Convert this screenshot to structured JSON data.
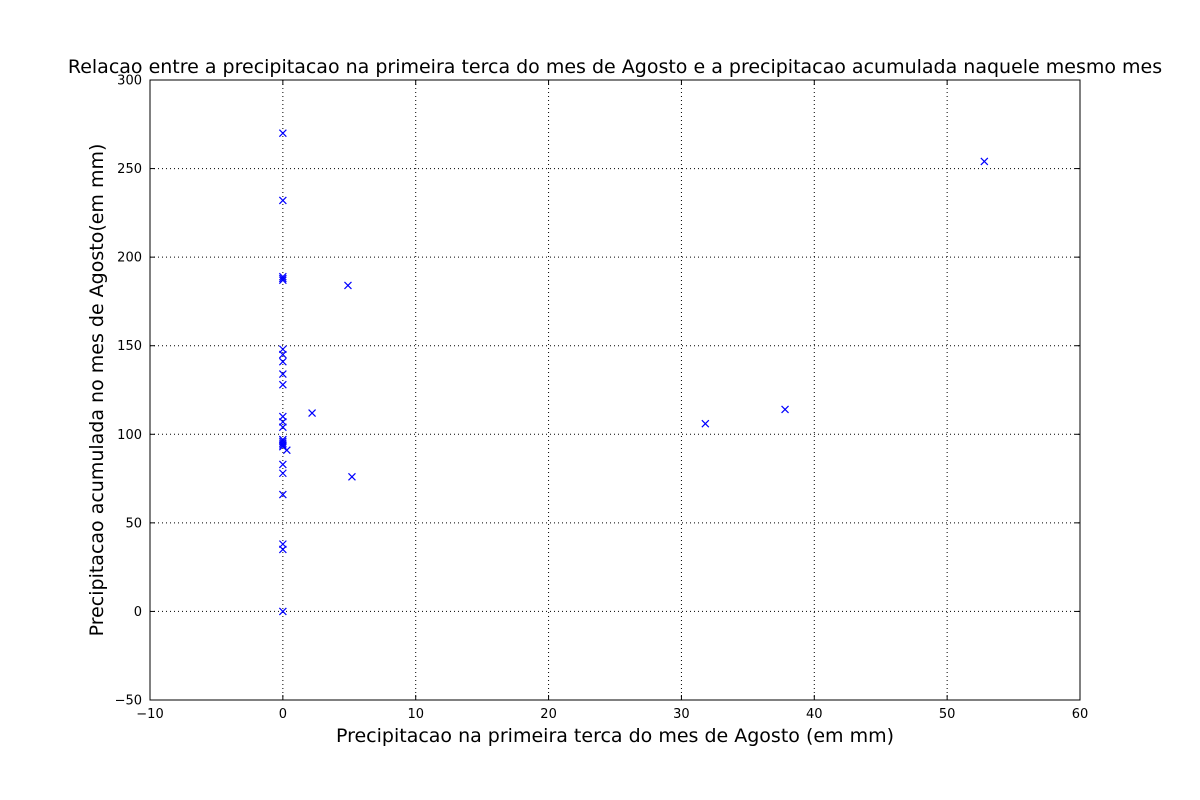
{
  "chart_data": {
    "type": "scatter",
    "title": "Relacao entre a precipitacao na primeira terca do mes de Agosto e a precipitacao acumulada naquele mesmo mes",
    "xlabel": "Precipitacao na primeira terca do mes de Agosto (em mm)",
    "ylabel": "Precipitacao acumulada no mes de Agosto(em mm)",
    "xlim": [
      -10,
      60
    ],
    "ylim": [
      -50,
      300
    ],
    "xticks": [
      "−10",
      "0",
      "10",
      "20",
      "30",
      "40",
      "50",
      "60"
    ],
    "yticks": [
      "−50",
      "0",
      "50",
      "100",
      "150",
      "200",
      "250",
      "300"
    ],
    "grid": true,
    "marker": "x",
    "color": "#0000ff",
    "series": [
      {
        "points": [
          [
            0,
            270
          ],
          [
            0,
            232
          ],
          [
            0,
            189
          ],
          [
            0,
            188
          ],
          [
            0,
            187
          ],
          [
            0,
            148
          ],
          [
            0,
            145
          ],
          [
            0,
            141
          ],
          [
            0,
            134
          ],
          [
            0,
            128
          ],
          [
            0,
            110
          ],
          [
            0,
            107
          ],
          [
            0,
            104
          ],
          [
            0,
            97
          ],
          [
            0,
            96
          ],
          [
            0,
            95
          ],
          [
            0,
            94
          ],
          [
            0,
            93
          ],
          [
            0.3,
            91
          ],
          [
            0,
            83
          ],
          [
            0,
            78
          ],
          [
            0,
            66
          ],
          [
            0,
            38
          ],
          [
            0,
            35
          ],
          [
            0,
            0
          ],
          [
            2.2,
            112
          ],
          [
            4.9,
            184
          ],
          [
            5.2,
            76
          ],
          [
            31.8,
            106
          ],
          [
            37.8,
            114
          ],
          [
            52.8,
            254
          ]
        ]
      }
    ]
  }
}
